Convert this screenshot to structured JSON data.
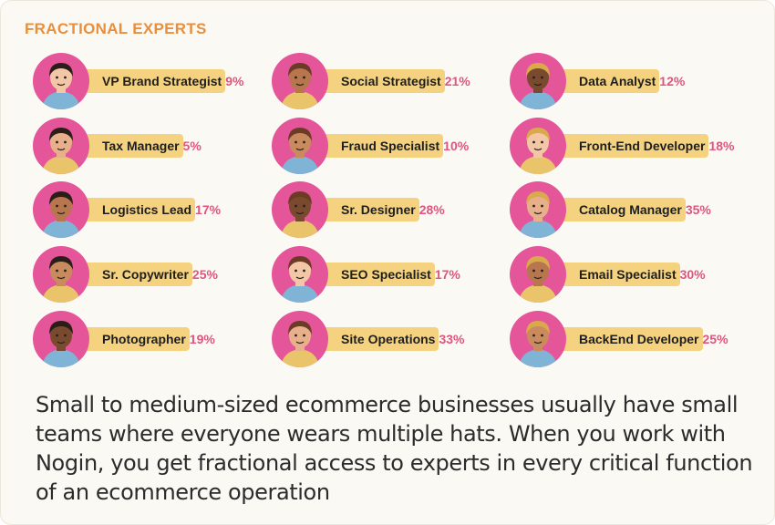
{
  "title": "FRACTIONAL EXPERTS",
  "description": "Small to medium-sized ecommerce businesses usually have small teams where everyone wears multiple hats. When you work with Nogin, you get fractional access to experts in every critical function of an ecommerce operation",
  "colors": {
    "avatar_bg": "#e5559a",
    "bar": "#f5d27f",
    "percent": "#e0557e",
    "title": "#e88f3e"
  },
  "chart_data": {
    "type": "bar",
    "categories": [
      "VP Brand Strategist",
      "Social Strategist",
      "Data Analyst",
      "Tax Manager",
      "Fraud Specialist",
      "Front-End Developer",
      "Logistics Lead",
      "Sr. Designer",
      "Catalog Manager",
      "Sr. Copywriter",
      "SEO Specialist",
      "Email Specialist",
      "Photographer",
      "Site Operations",
      "BackEnd Developer"
    ],
    "values": [
      9,
      21,
      12,
      5,
      10,
      18,
      17,
      28,
      35,
      25,
      17,
      30,
      19,
      33,
      25
    ],
    "unit": "%",
    "title": "FRACTIONAL EXPERTS",
    "items": [
      {
        "role": "VP Brand Strategist",
        "value": 9,
        "label": "9%"
      },
      {
        "role": "Social Strategist",
        "value": 21,
        "label": "21%"
      },
      {
        "role": "Data Analyst",
        "value": 12,
        "label": "12%"
      },
      {
        "role": "Tax Manager",
        "value": 5,
        "label": "5%"
      },
      {
        "role": "Fraud Specialist",
        "value": 10,
        "label": "10%"
      },
      {
        "role": "Front-End Developer",
        "value": 18,
        "label": "18%"
      },
      {
        "role": "Logistics Lead",
        "value": 17,
        "label": "17%"
      },
      {
        "role": "Sr. Designer",
        "value": 28,
        "label": "28%"
      },
      {
        "role": "Catalog Manager",
        "value": 35,
        "label": "35%"
      },
      {
        "role": "Sr. Copywriter",
        "value": 25,
        "label": "25%"
      },
      {
        "role": "SEO Specialist",
        "value": 17,
        "label": "17%"
      },
      {
        "role": "Email Specialist",
        "value": 30,
        "label": "30%"
      },
      {
        "role": "Photographer",
        "value": 19,
        "label": "19%"
      },
      {
        "role": "Site Operations",
        "value": 33,
        "label": "33%"
      },
      {
        "role": "BackEnd Developer",
        "value": 25,
        "label": "25%"
      }
    ]
  }
}
